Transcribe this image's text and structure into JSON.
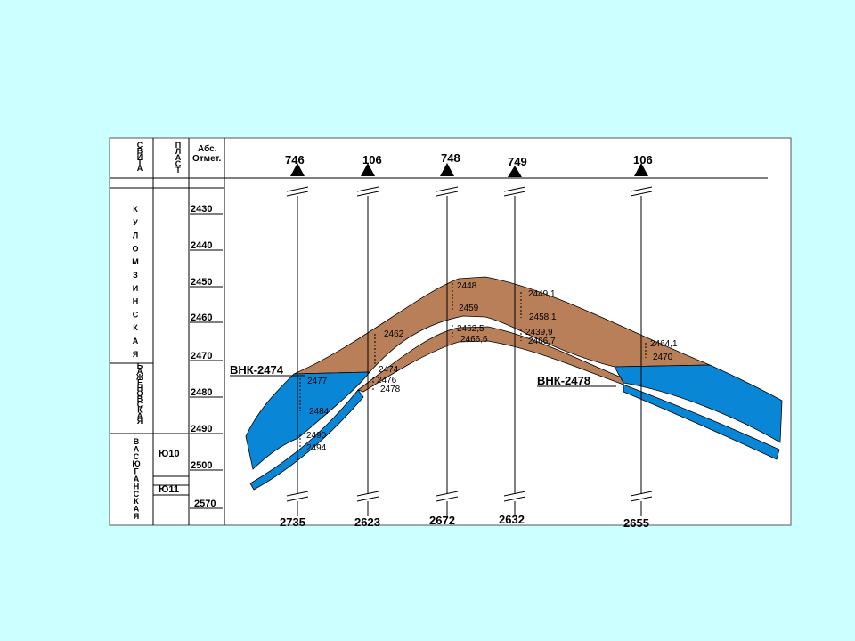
{
  "header": {
    "suite_col": "СВИТА",
    "layer_col": "ПЛАСТ",
    "abs_col": "Абс. Отмет."
  },
  "suites": {
    "kulomzinskaya": "КУЛОМЗИНСКАЯ",
    "bazhenovskaya": "БАЖЕНОВСКАЯ",
    "vasyuganskaya": "ВАСЮГАНСКАЯ"
  },
  "layers": [
    "Ю10",
    "Ю11"
  ],
  "depth_scale": [
    "2430",
    "2440",
    "2450",
    "2460",
    "2470",
    "2480",
    "2490",
    "2500",
    "2570"
  ],
  "wells": [
    {
      "name": "746",
      "bottom": "2735"
    },
    {
      "name": "106",
      "bottom": "2623"
    },
    {
      "name": "748",
      "bottom": "2672"
    },
    {
      "name": "749",
      "bottom": "2632"
    },
    {
      "name": "106",
      "bottom": "2655"
    }
  ],
  "contacts": {
    "left": "ВНК-2474",
    "right": "ВНК-2478"
  },
  "well_marks": {
    "w1": [
      "2477",
      "2484",
      "2490",
      "2494"
    ],
    "w2": [
      "2462",
      "2474",
      "2476",
      "2478"
    ],
    "w3": [
      "2448",
      "2459",
      "2462,5",
      "2466,6"
    ],
    "w4": [
      "2449,1",
      "2458,1",
      "2439,9",
      "2466,7"
    ],
    "w5": [
      "2464,1",
      "2470"
    ]
  },
  "colors": {
    "background": "#ccffff",
    "oil": "#b97f58",
    "water": "#0a86d6",
    "frame": "#000000"
  }
}
